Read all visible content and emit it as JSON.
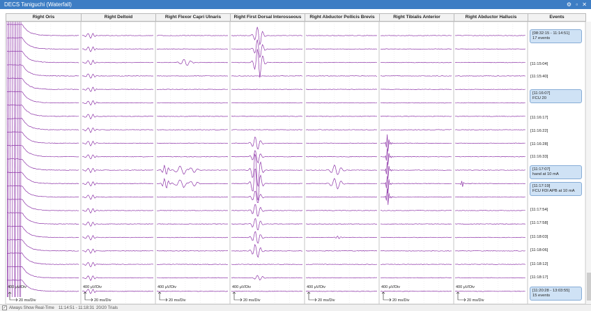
{
  "window": {
    "title": "DECS Taniguchi (Waterfall)"
  },
  "columns": [
    "Right Oris",
    "Right Deltoid",
    "Right Flexor Capri Ulnaris",
    "Right First Dorsal Interosseous",
    "Right Abductor Pollicis Brevis",
    "Right Tibialis Anterior",
    "Right Abductor Hallucis"
  ],
  "events_header": "Events",
  "scale": {
    "amplitude": "400 µV/Div",
    "time": "20 ms/Div"
  },
  "events": [
    {
      "time": "[08:32:15 - 11:14:51]",
      "note": "17 events"
    },
    {
      "time": "[11:15:04]"
    },
    {
      "time": "[11:15:40]"
    },
    {
      "time": "[11:16:07]",
      "note": "FCU 20"
    },
    {
      "time": "[11:16:17]"
    },
    {
      "time": "[11:16:22]"
    },
    {
      "time": "[11:16:28]"
    },
    {
      "time": "[11:16:33]"
    },
    {
      "time": "[11:17:07]",
      "note": "hand at 10 mA"
    },
    {
      "time": "[11:17:19]",
      "note": "FCU FDI APB at 10 mA"
    },
    {
      "time": "[11:17:54]"
    },
    {
      "time": "[11:17:58]"
    },
    {
      "time": "[11:18:03]"
    },
    {
      "time": "[11:18:06]"
    },
    {
      "time": "[11:18:12]"
    },
    {
      "time": "[11:18:17]"
    },
    {
      "time": "[11:20:28 - 13:03:55]",
      "note": "15 events"
    }
  ],
  "status": {
    "checkbox_label": "Always Show Real-Time",
    "time_range": "11:14:51 - 11:18:31",
    "trials": "20/20 Trials"
  }
}
